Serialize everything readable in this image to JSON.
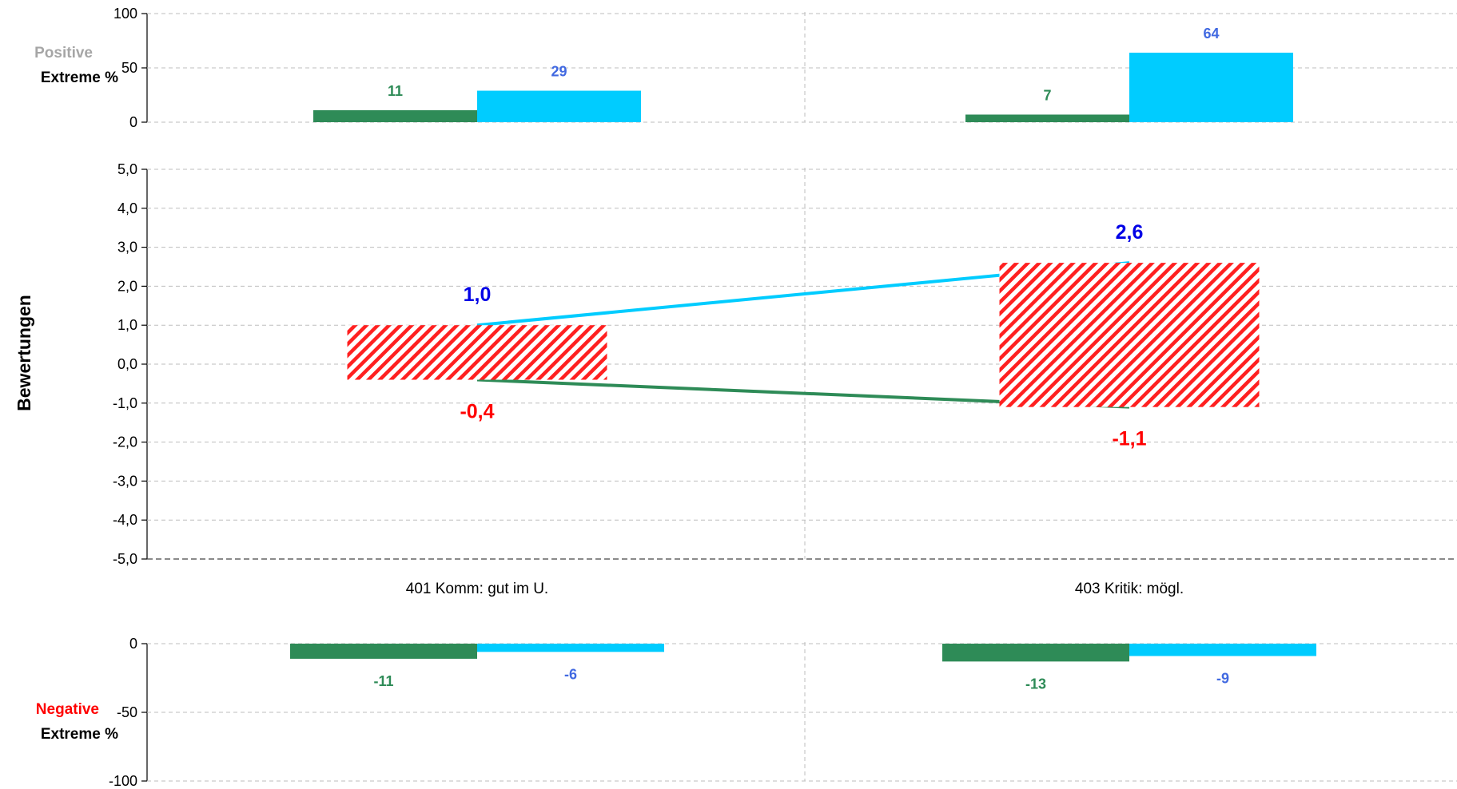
{
  "chart_data": [
    {
      "type": "bar",
      "panel": "top",
      "label_line1": "Positive",
      "label_line2": "Extreme %",
      "ylim": [
        0,
        100
      ],
      "yticks": [
        "0",
        "50",
        "100"
      ],
      "categories": [
        "401 Komm: gut im U.",
        "403 Kritik: mögl."
      ],
      "series": [
        {
          "values": [
            11,
            7
          ],
          "labels": [
            "11",
            "7"
          ],
          "color": "#2e8b57",
          "label_color": "#2e8b57"
        },
        {
          "values": [
            29,
            64
          ],
          "labels": [
            "29",
            "64"
          ],
          "color": "#00ccff",
          "label_color": "#4169e1"
        }
      ]
    },
    {
      "type": "bar",
      "panel": "middle",
      "ylabel": "Bewertungen",
      "ylim": [
        -5,
        5
      ],
      "yticks": [
        "-5,0",
        "-4,0",
        "-3,0",
        "-2,0",
        "-1,0",
        "0,0",
        "1,0",
        "2,0",
        "3,0",
        "4,0",
        "5,0"
      ],
      "categories": [
        "401 Komm: gut im U.",
        "403 Kritik: mögl."
      ],
      "ranges": [
        {
          "low": -0.4,
          "high": 1.0,
          "low_label": "-0,4",
          "high_label": "1,0"
        },
        {
          "low": -1.1,
          "high": 2.6,
          "low_label": "-1,1",
          "high_label": "2,6"
        }
      ],
      "range_color": "#ff2020",
      "high_label_color": "#0000e6",
      "low_label_color": "#ff0000",
      "line_high_color": "#00ccff",
      "line_low_color": "#2e8b57"
    },
    {
      "type": "bar",
      "panel": "bottom",
      "label_line1": "Negative",
      "label_line2": "Extreme %",
      "ylim": [
        -100,
        0
      ],
      "yticks": [
        "0",
        "-50",
        "-100"
      ],
      "categories": [
        "401 Komm: gut im U.",
        "403 Kritik: mögl."
      ],
      "series": [
        {
          "values": [
            -11,
            -13
          ],
          "labels": [
            "-11",
            "-13"
          ],
          "color": "#2e8b57",
          "label_color": "#2e8b57"
        },
        {
          "values": [
            -6,
            -9
          ],
          "labels": [
            "-6",
            "-9"
          ],
          "color": "#00ccff",
          "label_color": "#4169e1"
        }
      ]
    }
  ],
  "colors": {
    "positive_label": "#a6a6a6",
    "negative_label": "#ff0000",
    "axis_text": "#000000"
  }
}
